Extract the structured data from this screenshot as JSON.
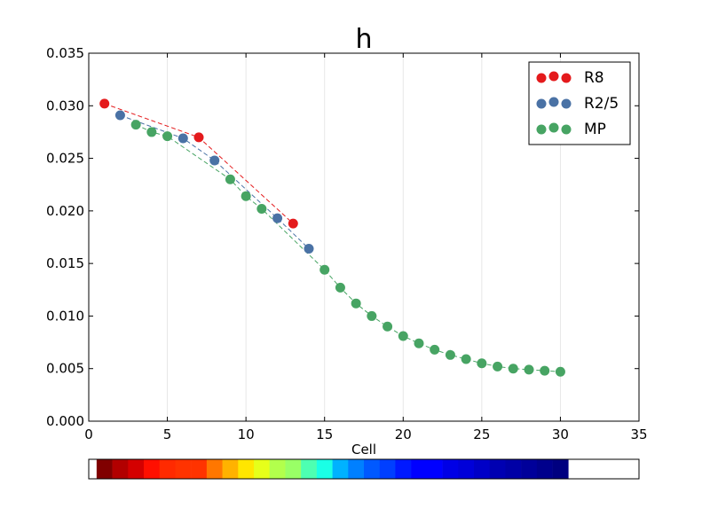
{
  "chart_data": {
    "type": "scatter",
    "title": "h",
    "xlabel": "Cell",
    "ylabel": "",
    "xlim": [
      0,
      35
    ],
    "ylim": [
      0,
      0.035
    ],
    "x_ticks": [
      0,
      5,
      10,
      15,
      20,
      25,
      30,
      35
    ],
    "x_tick_labels": [
      "0",
      "5",
      "10",
      "15",
      "20",
      "25",
      "30",
      "35"
    ],
    "y_ticks": [
      0,
      0.005,
      0.01,
      0.015,
      0.02,
      0.025,
      0.03,
      0.035
    ],
    "y_tick_labels": [
      "0.000",
      "0.005",
      "0.010",
      "0.015",
      "0.020",
      "0.025",
      "0.030",
      "0.035"
    ],
    "grid": "vertical lines at x ticks",
    "legend_position": "top-right",
    "series": [
      {
        "name": "R8",
        "color": "#e41a1c",
        "x": [
          1,
          7,
          13
        ],
        "y": [
          0.0302,
          0.027,
          0.0188
        ]
      },
      {
        "name": "R2/5",
        "color": "#4a72a5",
        "x": [
          2,
          6,
          8,
          12,
          14
        ],
        "y": [
          0.0291,
          0.0269,
          0.0248,
          0.0193,
          0.0164
        ]
      },
      {
        "name": "MP",
        "color": "#47a463",
        "x": [
          3,
          4,
          5,
          9,
          10,
          11,
          15,
          16,
          17,
          18,
          19,
          20,
          21,
          22,
          23,
          24,
          25,
          26,
          27,
          28,
          29,
          30
        ],
        "y": [
          0.0282,
          0.0275,
          0.0271,
          0.023,
          0.0214,
          0.0202,
          0.0144,
          0.0127,
          0.0112,
          0.01,
          0.009,
          0.0081,
          0.0074,
          0.0068,
          0.0063,
          0.0059,
          0.0055,
          0.0052,
          0.005,
          0.0049,
          0.0048,
          0.0047
        ]
      }
    ],
    "colorbar": {
      "colors": [
        "#800000",
        "#b20000",
        "#d40000",
        "#ff0f00",
        "#ff2a00",
        "#ff3300",
        "#ff3300",
        "#ff7700",
        "#ffb200",
        "#ffe600",
        "#e6ff1a",
        "#b2ff4c",
        "#99ff66",
        "#4dffb2",
        "#1affe6",
        "#00b2ff",
        "#0080ff",
        "#0059ff",
        "#003fff",
        "#0019ff",
        "#0000ff",
        "#0000ff",
        "#0000e6",
        "#0000d9",
        "#0000c7",
        "#0000b2",
        "#0000a6",
        "#00009a",
        "#00008c",
        "#000080"
      ]
    }
  }
}
